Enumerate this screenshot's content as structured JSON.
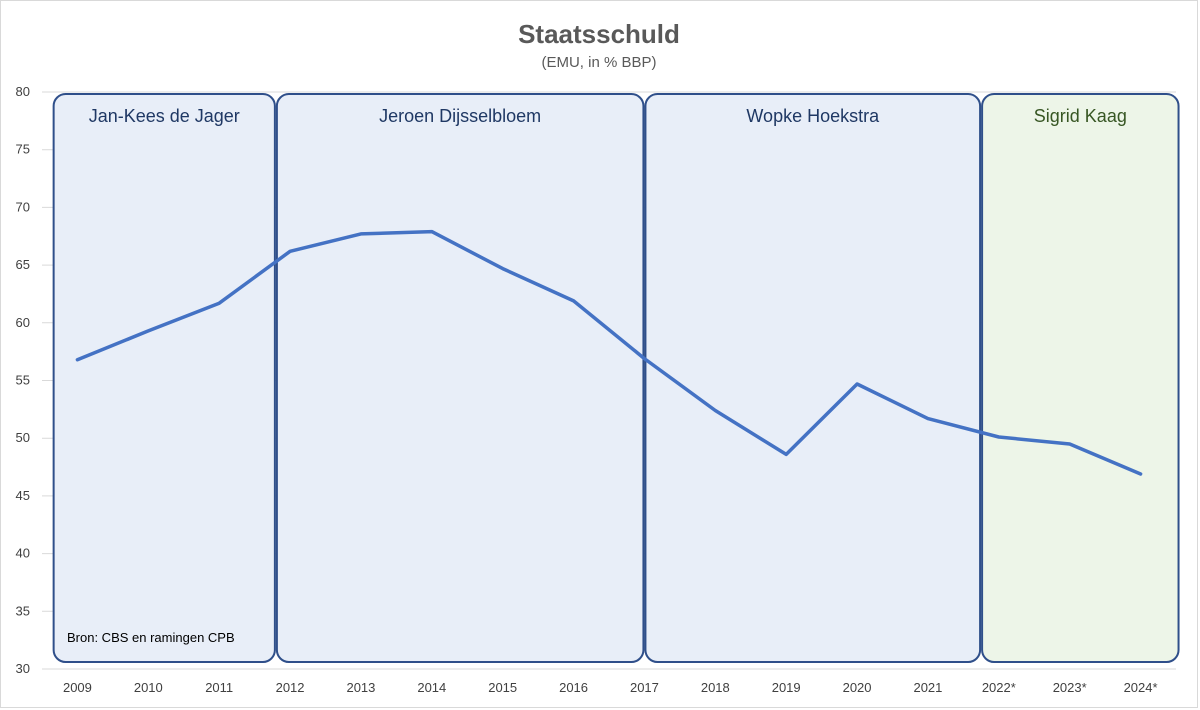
{
  "chart_data": {
    "type": "line",
    "title": "Staatsschuld",
    "subtitle": "(EMU, in % BBP)",
    "xlabel": "",
    "ylabel": "",
    "ylim": [
      30,
      80
    ],
    "yticks": [
      30,
      35,
      40,
      45,
      50,
      55,
      60,
      65,
      70,
      75,
      80
    ],
    "grid": true,
    "categories": [
      "2009",
      "2010",
      "2011",
      "2012",
      "2013",
      "2014",
      "2015",
      "2016",
      "2017",
      "2018",
      "2019",
      "2020",
      "2021",
      "2022*",
      "2023*",
      "2024*"
    ],
    "series": [
      {
        "color": "#4472c4",
        "values": [
          56.8,
          59.3,
          61.7,
          66.2,
          67.7,
          67.9,
          64.7,
          61.9,
          56.9,
          52.4,
          48.6,
          54.7,
          51.7,
          50.1,
          49.5,
          46.9
        ]
      }
    ],
    "periods": [
      {
        "label": "Jan-Kees de Jager",
        "start": -0.35,
        "end": 2.8,
        "fill": "#e8eef8",
        "stroke": "#2f4f8a",
        "text_color": "#1f3864"
      },
      {
        "label": "Jeroen Dijsselbloem",
        "start": 2.8,
        "end": 8.0,
        "fill": "#e8eef8",
        "stroke": "#2f4f8a",
        "text_color": "#1f3864"
      },
      {
        "label": "Wopke Hoekstra",
        "start": 8.0,
        "end": 12.75,
        "fill": "#e8eef8",
        "stroke": "#2f4f8a",
        "text_color": "#1f3864"
      },
      {
        "label": "Sigrid Kaag",
        "start": 12.75,
        "end": 15.55,
        "fill": "#edf5e8",
        "stroke": "#2f4f8a",
        "text_color": "#375623"
      }
    ],
    "annotation": "Bron: CBS en ramingen CPB"
  }
}
